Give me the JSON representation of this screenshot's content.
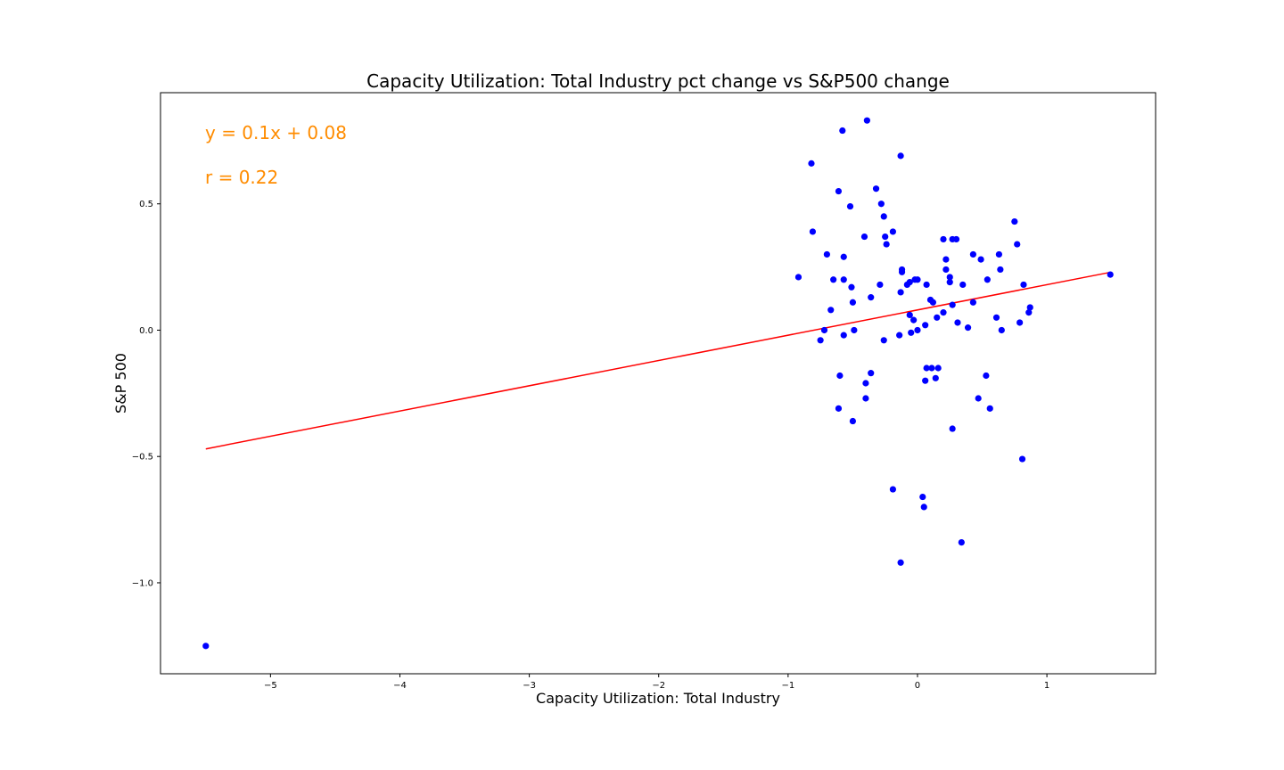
{
  "chart_data": {
    "type": "scatter",
    "title": "Capacity Utilization: Total Industry pct change vs S&P500 change",
    "xlabel": "Capacity Utilization: Total Industry",
    "ylabel": "S&P 500",
    "xlim": [
      -5.85,
      1.84
    ],
    "ylim": [
      -1.36,
      0.94
    ],
    "xticks": [
      -5,
      -4,
      -3,
      -2,
      -1,
      0,
      1
    ],
    "xtick_labels": [
      "−5",
      "−4",
      "−3",
      "−2",
      "−1",
      "0",
      "1"
    ],
    "yticks": [
      -1.0,
      -0.5,
      0.0,
      0.5
    ],
    "ytick_labels": [
      "−1.0",
      "−0.5",
      "0.0",
      "0.5"
    ],
    "grid": false,
    "point_color": "#0000ff",
    "line_color": "#ff0000",
    "annotation_color": "#ff8c00",
    "annotations": [
      "y = 0.1x + 0.08",
      "r = 0.22"
    ],
    "regression": {
      "slope": 0.1,
      "intercept": 0.08,
      "x_range": [
        -5.5,
        1.49
      ]
    },
    "points": [
      [
        -5.5,
        -1.25
      ],
      [
        1.49,
        0.22
      ],
      [
        -0.92,
        0.21
      ],
      [
        -0.82,
        0.66
      ],
      [
        -0.81,
        0.39
      ],
      [
        -0.75,
        -0.04
      ],
      [
        -0.72,
        0.0
      ],
      [
        -0.7,
        0.3
      ],
      [
        -0.67,
        0.08
      ],
      [
        -0.65,
        0.2
      ],
      [
        -0.61,
        0.55
      ],
      [
        -0.6,
        -0.18
      ],
      [
        -0.61,
        -0.31
      ],
      [
        -0.58,
        0.79
      ],
      [
        -0.57,
        0.2
      ],
      [
        -0.57,
        0.29
      ],
      [
        -0.57,
        -0.02
      ],
      [
        -0.52,
        0.49
      ],
      [
        -0.51,
        0.17
      ],
      [
        -0.5,
        0.11
      ],
      [
        -0.49,
        0.0
      ],
      [
        -0.5,
        -0.36
      ],
      [
        -0.41,
        0.37
      ],
      [
        -0.39,
        0.83
      ],
      [
        -0.4,
        -0.21
      ],
      [
        -0.4,
        -0.27
      ],
      [
        -0.36,
        0.13
      ],
      [
        -0.36,
        -0.17
      ],
      [
        -0.32,
        0.56
      ],
      [
        -0.29,
        0.18
      ],
      [
        -0.28,
        0.5
      ],
      [
        -0.26,
        0.45
      ],
      [
        -0.25,
        0.37
      ],
      [
        -0.24,
        0.34
      ],
      [
        -0.26,
        -0.04
      ],
      [
        -0.19,
        0.39
      ],
      [
        -0.19,
        -0.63
      ],
      [
        -0.14,
        -0.02
      ],
      [
        -0.13,
        0.15
      ],
      [
        -0.13,
        0.69
      ],
      [
        -0.12,
        0.24
      ],
      [
        -0.12,
        0.23
      ],
      [
        -0.13,
        -0.92
      ],
      [
        -0.08,
        0.18
      ],
      [
        -0.06,
        0.19
      ],
      [
        -0.06,
        0.06
      ],
      [
        -0.05,
        -0.01
      ],
      [
        -0.03,
        0.04
      ],
      [
        -0.02,
        0.2
      ],
      [
        0.0,
        0.2
      ],
      [
        0.0,
        0.0
      ],
      [
        0.04,
        -0.66
      ],
      [
        0.05,
        -0.7
      ],
      [
        0.06,
        -0.2
      ],
      [
        0.06,
        0.02
      ],
      [
        0.07,
        0.18
      ],
      [
        0.07,
        -0.15
      ],
      [
        0.1,
        0.12
      ],
      [
        0.11,
        -0.15
      ],
      [
        0.12,
        0.11
      ],
      [
        0.14,
        -0.19
      ],
      [
        0.15,
        0.05
      ],
      [
        0.16,
        -0.15
      ],
      [
        0.2,
        0.07
      ],
      [
        0.2,
        0.36
      ],
      [
        0.22,
        0.28
      ],
      [
        0.22,
        0.24
      ],
      [
        0.25,
        0.21
      ],
      [
        0.25,
        0.19
      ],
      [
        0.27,
        0.36
      ],
      [
        0.27,
        0.1
      ],
      [
        0.27,
        -0.39
      ],
      [
        0.3,
        0.36
      ],
      [
        0.31,
        0.03
      ],
      [
        0.34,
        -0.84
      ],
      [
        0.35,
        0.18
      ],
      [
        0.39,
        0.01
      ],
      [
        0.43,
        0.3
      ],
      [
        0.43,
        0.11
      ],
      [
        0.47,
        -0.27
      ],
      [
        0.49,
        0.28
      ],
      [
        0.53,
        -0.18
      ],
      [
        0.54,
        0.2
      ],
      [
        0.56,
        -0.31
      ],
      [
        0.61,
        0.05
      ],
      [
        0.63,
        0.3
      ],
      [
        0.64,
        0.24
      ],
      [
        0.65,
        0.0
      ],
      [
        0.75,
        0.43
      ],
      [
        0.77,
        0.34
      ],
      [
        0.79,
        0.03
      ],
      [
        0.81,
        -0.51
      ],
      [
        0.82,
        0.18
      ],
      [
        0.86,
        0.07
      ],
      [
        0.87,
        0.09
      ]
    ]
  }
}
